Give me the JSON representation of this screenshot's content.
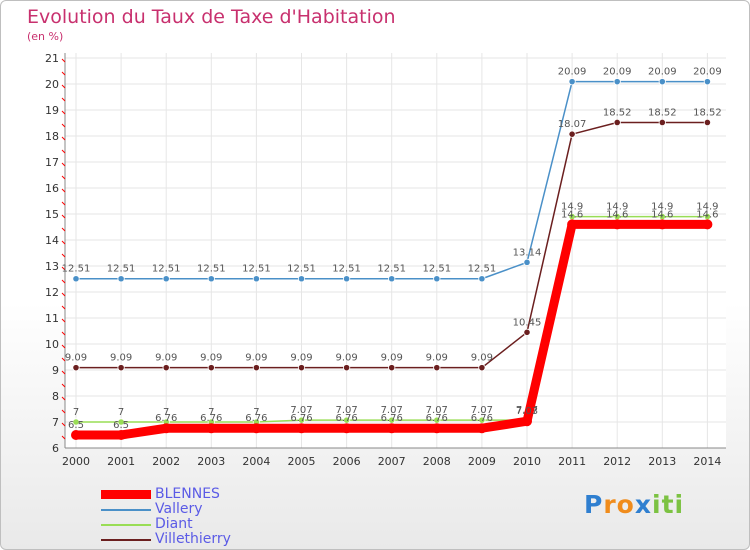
{
  "chart_data": {
    "type": "line",
    "title": "Evolution du Taux de Taxe d'Habitation",
    "ylabel": "(en %)",
    "xlabel": "",
    "ylim": [
      6,
      21
    ],
    "yticks": [
      "6",
      "7",
      "8",
      "9",
      "10",
      "11",
      "12",
      "13",
      "14",
      "15",
      "16",
      "17",
      "18",
      "19",
      "20",
      "21"
    ],
    "x": [
      "2000",
      "2001",
      "2002",
      "2003",
      "2004",
      "2005",
      "2006",
      "2007",
      "2008",
      "2009",
      "2010",
      "2011",
      "2012",
      "2013",
      "2014"
    ],
    "grid": true,
    "series": [
      {
        "name": "BLENNES",
        "color": "#ff0000",
        "values": [
          6.5,
          6.5,
          6.76,
          6.76,
          6.76,
          6.76,
          6.76,
          6.76,
          6.76,
          6.76,
          7.03,
          14.6,
          14.6,
          14.6,
          14.6
        ],
        "labels": [
          "6.5",
          "6.5",
          "6.76",
          "6.76",
          "6.76",
          "6.76",
          "6.76",
          "6.76",
          "6.76",
          "6.76",
          "7.03",
          "14.6",
          "14.6",
          "14.6",
          "14.6"
        ]
      },
      {
        "name": "Vallery",
        "color": "#4a90c8",
        "values": [
          12.51,
          12.51,
          12.51,
          12.51,
          12.51,
          12.51,
          12.51,
          12.51,
          12.51,
          12.51,
          13.14,
          20.09,
          20.09,
          20.09,
          20.09
        ],
        "labels": [
          "12.51",
          "12.51",
          "12.51",
          "12.51",
          "12.51",
          "12.51",
          "12.51",
          "12.51",
          "12.51",
          "12.51",
          "13.14",
          "20.09",
          "20.09",
          "20.09",
          "20.09"
        ]
      },
      {
        "name": "Diant",
        "color": "#99dd55",
        "values": [
          7,
          7,
          7,
          7,
          7,
          7.07,
          7.07,
          7.07,
          7.07,
          7.07,
          7.07,
          14.9,
          14.9,
          14.9,
          14.9
        ],
        "labels": [
          "7",
          "7",
          "7",
          "7",
          "7",
          "7.07",
          "7.07",
          "7.07",
          "7.07",
          "7.07",
          "7.07",
          "14.9",
          "14.9",
          "14.9",
          "14.9"
        ]
      },
      {
        "name": "Villethierry",
        "color": "#6b1f1f",
        "values": [
          9.09,
          9.09,
          9.09,
          9.09,
          9.09,
          9.09,
          9.09,
          9.09,
          9.09,
          9.09,
          10.45,
          18.07,
          18.52,
          18.52,
          18.52
        ],
        "labels": [
          "9.09",
          "9.09",
          "9.09",
          "9.09",
          "9.09",
          "9.09",
          "9.09",
          "9.09",
          "9.09",
          "9.09",
          "10.45",
          "18.07",
          "18.52",
          "18.52",
          "18.52"
        ]
      }
    ],
    "legend": [
      "BLENNES",
      "Vallery",
      "Diant",
      "Villethierry"
    ]
  },
  "brand": {
    "letters": [
      "P",
      "r",
      "o",
      "x",
      "i",
      "t",
      "i"
    ],
    "colors": [
      "#2f7fd0",
      "#f08c1c",
      "#f08c1c",
      "#2f7fd0",
      "#7cc242",
      "#7cc242",
      "#7cc242"
    ]
  }
}
